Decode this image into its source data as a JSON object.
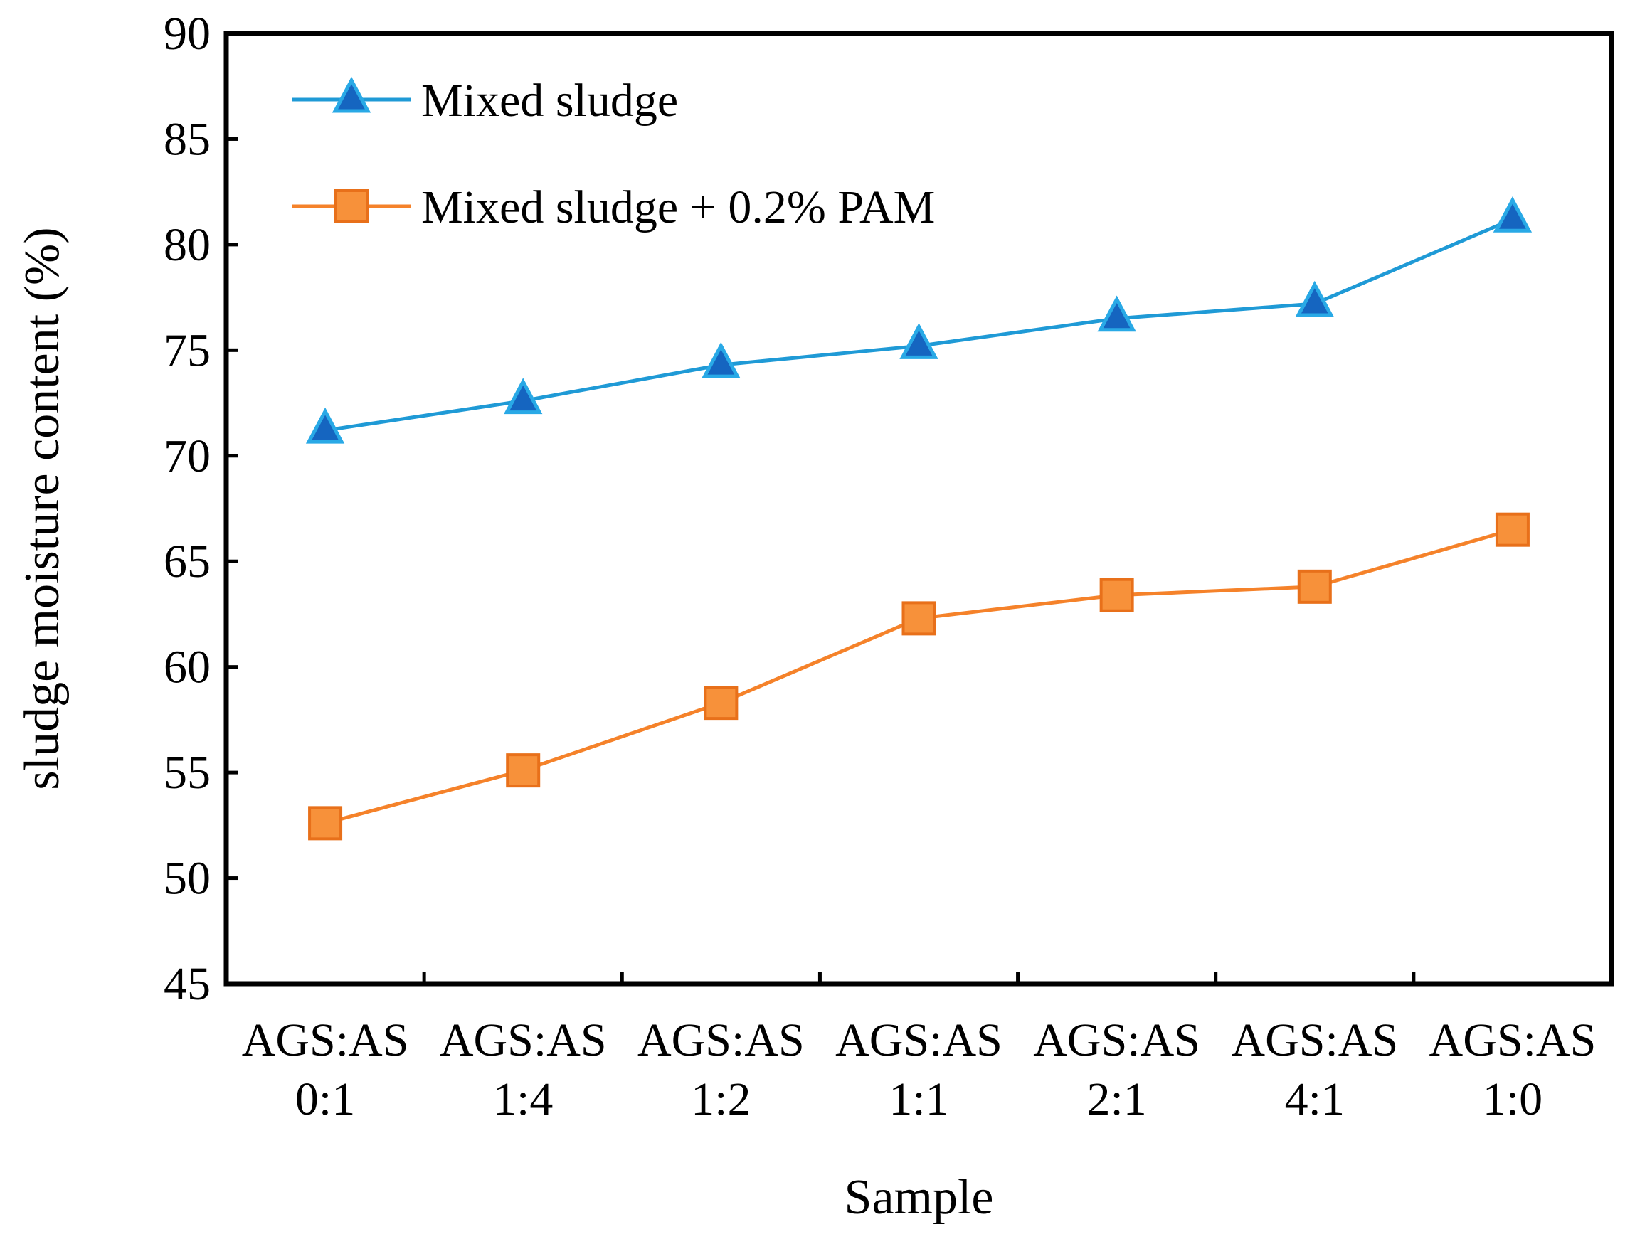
{
  "chart_data": {
    "type": "line",
    "title": "",
    "xlabel": "Sample",
    "ylabel": "sludge moisture content (%)",
    "ylim": [
      45,
      90
    ],
    "yticks": [
      45,
      50,
      55,
      60,
      65,
      70,
      75,
      80,
      85,
      90
    ],
    "grid": false,
    "legend_position": "top-left",
    "categories": [
      [
        "AGS:AS",
        "0:1"
      ],
      [
        "AGS:AS",
        "1:4"
      ],
      [
        "AGS:AS",
        "1:2"
      ],
      [
        "AGS:AS",
        "1:1"
      ],
      [
        "AGS:AS",
        "2:1"
      ],
      [
        "AGS:AS",
        "4:1"
      ],
      [
        "AGS:AS",
        "1:0"
      ]
    ],
    "series": [
      {
        "name": "Mixed sludge",
        "marker": "triangle",
        "line_color": "#1f9ad6",
        "marker_fill": "#1565c0",
        "marker_stroke": "#29a9e6",
        "values": [
          71.2,
          72.6,
          74.3,
          75.2,
          76.5,
          77.2,
          81.2
        ]
      },
      {
        "name": "Mixed sludge + 0.2% PAM",
        "marker": "square",
        "line_color": "#f5822a",
        "marker_fill": "#f7913a",
        "marker_stroke": "#e8701a",
        "values": [
          52.6,
          55.1,
          58.3,
          62.3,
          63.4,
          63.8,
          66.5
        ]
      }
    ]
  }
}
